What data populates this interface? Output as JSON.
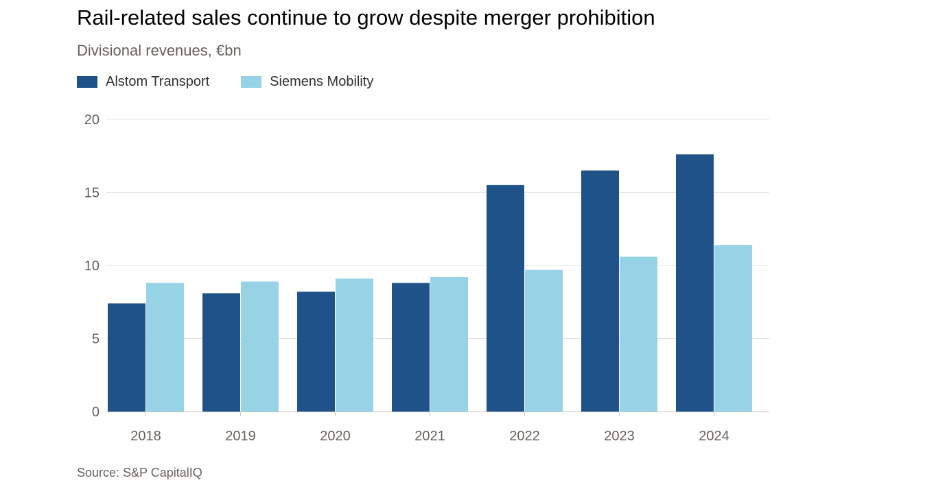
{
  "header": {
    "title": "Rail-related sales continue to grow despite merger prohibition",
    "subtitle": "Divisional revenues, €bn"
  },
  "footer": {
    "source": "Source: S&P CapitalIQ"
  },
  "colors": {
    "alstom": "#1f5289",
    "siemens": "#96d3e7",
    "grid": "#e6e3e0",
    "axis": "#c8c3be"
  },
  "chart_data": {
    "type": "bar",
    "title": "Rail-related sales continue to grow despite merger prohibition",
    "subtitle": "Divisional revenues, €bn",
    "xlabel": "",
    "ylabel": "",
    "ylim": [
      0,
      20
    ],
    "yticks": [
      0,
      5,
      10,
      15,
      20
    ],
    "grid": true,
    "legend_position": "top-left",
    "categories": [
      "2018",
      "2019",
      "2020",
      "2021",
      "2022",
      "2023",
      "2024"
    ],
    "series": [
      {
        "name": "Alstom Transport",
        "values": [
          7.4,
          8.1,
          8.2,
          8.8,
          15.5,
          16.5,
          17.6
        ]
      },
      {
        "name": "Siemens Mobility",
        "values": [
          8.8,
          8.9,
          9.1,
          9.2,
          9.7,
          10.6,
          11.4
        ]
      }
    ]
  }
}
